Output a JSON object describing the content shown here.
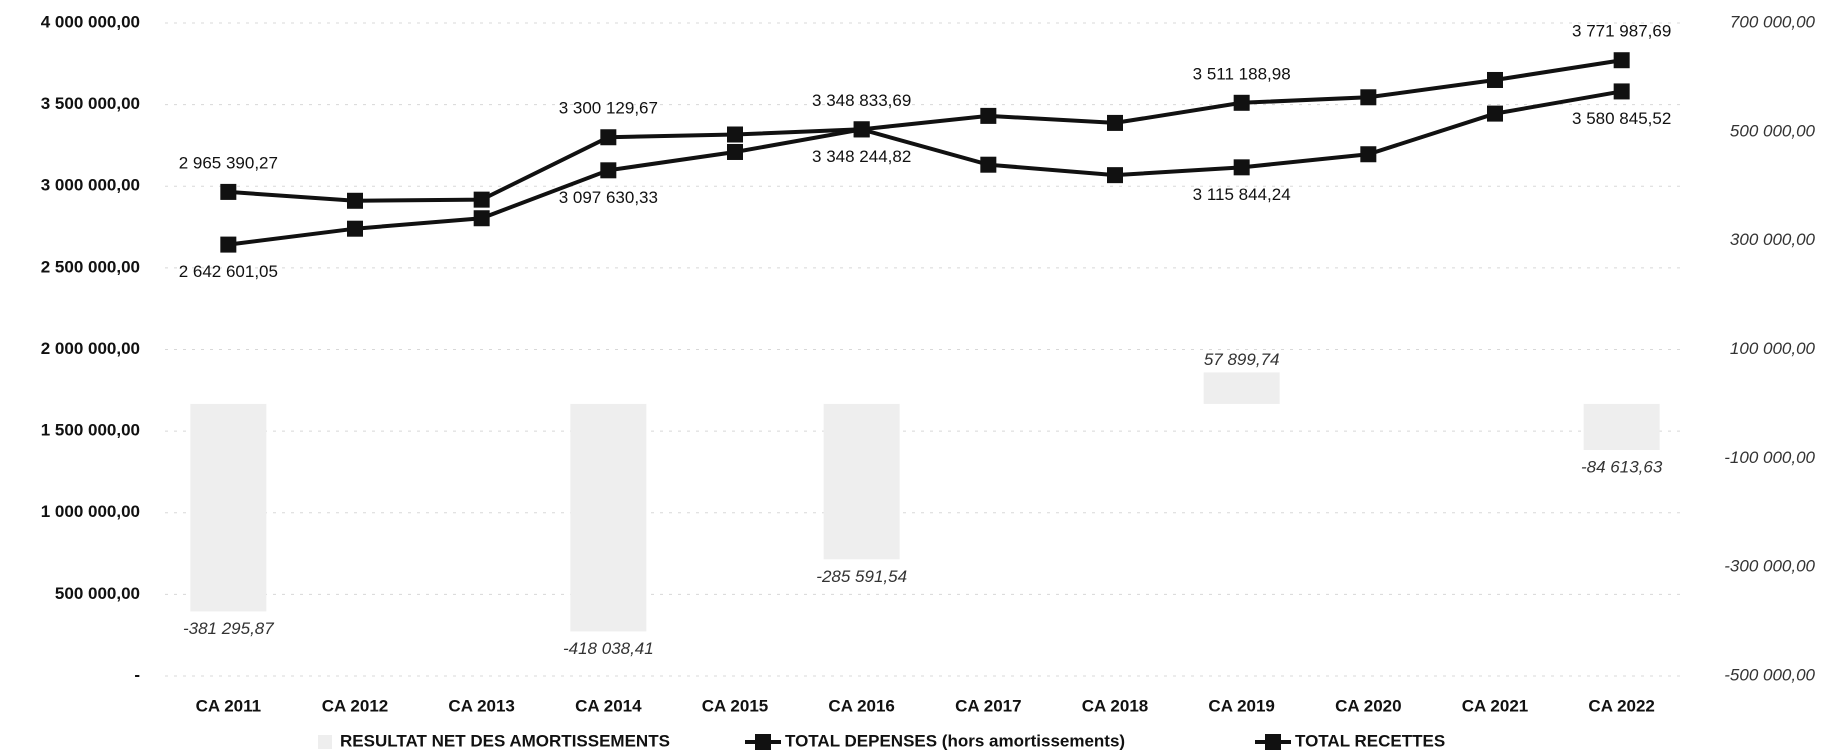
{
  "chart_data": {
    "type": "line",
    "categories": [
      "CA 2011",
      "CA 2012",
      "CA 2013",
      "CA 2014",
      "CA 2015",
      "CA 2016",
      "CA 2017",
      "CA 2018",
      "CA 2019",
      "CA 2020",
      "CA 2021",
      "CA 2022"
    ],
    "series": [
      {
        "name": "RESULTAT NET DES AMORTISSEMENTS",
        "type": "bar",
        "axis": "y2",
        "color": "#eeeeee",
        "values": [
          -381295.87,
          null,
          null,
          -418038.41,
          null,
          -285591.54,
          null,
          null,
          57899.74,
          null,
          null,
          -84613.63
        ],
        "value_labels": [
          "-381 295,87",
          null,
          null,
          "-418 038,41",
          null,
          "-285 591,54",
          null,
          null,
          "57 899,74",
          null,
          null,
          "-84 613,63"
        ]
      },
      {
        "name": "TOTAL DEPENSES (hors amortissements)",
        "color": "#111111",
        "values": [
          2965390.27,
          2911000,
          2918000,
          3300129.67,
          3317000,
          3348833.69,
          3431000,
          3388000,
          3511188.98,
          3545000,
          3651000,
          3771987.69
        ],
        "value_labels": [
          "2 965 390,27",
          null,
          null,
          "3 300 129,67",
          null,
          "3 348 833,69",
          null,
          null,
          "3 511 188,98",
          null,
          null,
          "3 771 987,69"
        ]
      },
      {
        "name": "TOTAL RECETTES",
        "color": "#111111",
        "values": [
          2642601.05,
          2740000,
          2804000,
          3097630.33,
          3210000,
          3348244.82,
          3132000,
          3068000,
          3115844.24,
          3196000,
          3445000,
          3580845.52
        ],
        "value_labels": [
          "2 642 601,05",
          null,
          null,
          "3 097 630,33",
          null,
          "3 348 244,82",
          null,
          null,
          "3 115 844,24",
          null,
          null,
          "3 580 845,52"
        ]
      }
    ],
    "ylim": [
      0,
      4000000
    ],
    "yticks": [
      {
        "value": 0,
        "label": "-"
      },
      {
        "value": 500000,
        "label": "500 000,00"
      },
      {
        "value": 1000000,
        "label": "1 000 000,00"
      },
      {
        "value": 1500000,
        "label": "1 500 000,00"
      },
      {
        "value": 2000000,
        "label": "2 000 000,00"
      },
      {
        "value": 2500000,
        "label": "2 500 000,00"
      },
      {
        "value": 3000000,
        "label": "3 000 000,00"
      },
      {
        "value": 3500000,
        "label": "3 500 000,00"
      },
      {
        "value": 4000000,
        "label": "4 000 000,00"
      }
    ],
    "y2lim": [
      -500000,
      700000
    ],
    "y2ticks": [
      {
        "value": -500000,
        "label": "-500 000,00"
      },
      {
        "value": -300000,
        "label": "-300 000,00"
      },
      {
        "value": -100000,
        "label": "-100 000,00"
      },
      {
        "value": 100000,
        "label": "100 000,00"
      },
      {
        "value": 300000,
        "label": "300 000,00"
      },
      {
        "value": 500000,
        "label": "500 000,00"
      },
      {
        "value": 700000,
        "label": "700 000,00"
      }
    ],
    "grid": true,
    "legend": "bottom"
  }
}
